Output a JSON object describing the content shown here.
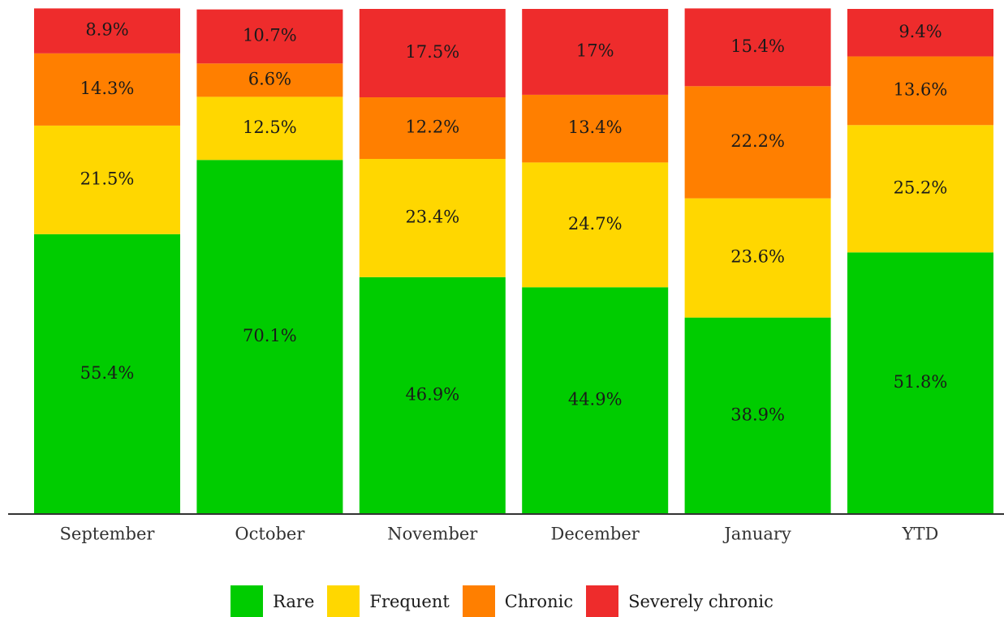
{
  "chart_data": {
    "type": "bar",
    "stacked": true,
    "normalized_to_percent": true,
    "title": "",
    "xlabel": "",
    "ylabel": "",
    "ylim": [
      0,
      100
    ],
    "grid": false,
    "legend_position": "bottom",
    "categories": [
      "September",
      "October",
      "November",
      "December",
      "January",
      "YTD"
    ],
    "series": [
      {
        "name": "Rare",
        "color": "#00cc00",
        "values": [
          55.4,
          70.1,
          46.9,
          44.9,
          38.9,
          51.8
        ],
        "labels": [
          "55.4%",
          "70.1%",
          "46.9%",
          "44.9%",
          "38.9%",
          "51.8%"
        ]
      },
      {
        "name": "Frequent",
        "color": "#ffd700",
        "values": [
          21.5,
          12.5,
          23.4,
          24.7,
          23.6,
          25.2
        ],
        "labels": [
          "21.5%",
          "12.5%",
          "23.4%",
          "24.7%",
          "23.6%",
          "25.2%"
        ]
      },
      {
        "name": "Chronic",
        "color": "#ff7f00",
        "values": [
          14.3,
          6.6,
          12.2,
          13.4,
          22.2,
          13.6
        ],
        "labels": [
          "14.3%",
          "6.6%",
          "12.2%",
          "13.4%",
          "22.2%",
          "13.6%"
        ]
      },
      {
        "name": "Severely chronic",
        "color": "#ee2c2c",
        "values": [
          8.9,
          10.7,
          17.5,
          17,
          15.4,
          9.4
        ],
        "labels": [
          "8.9%",
          "10.7%",
          "17.5%",
          "17%",
          "15.4%",
          "9.4%"
        ]
      }
    ]
  }
}
